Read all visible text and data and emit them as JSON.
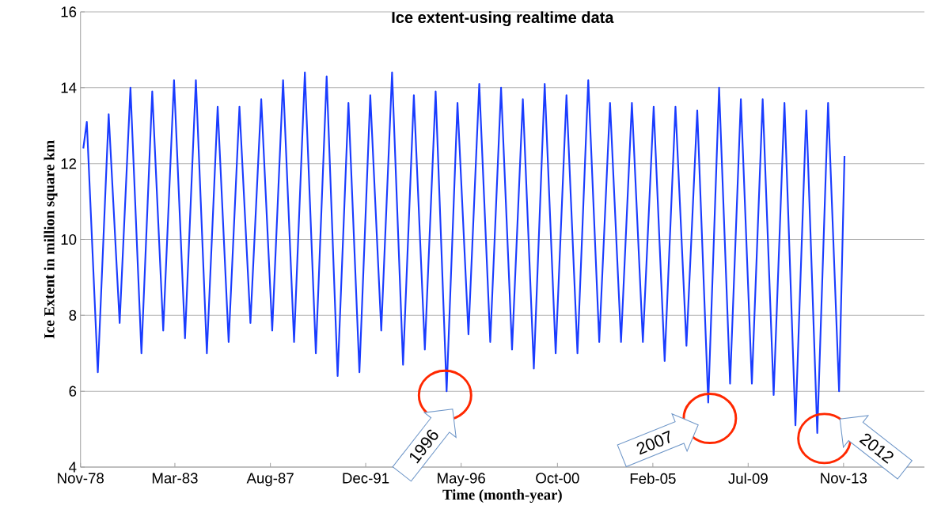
{
  "chart_data": {
    "type": "line",
    "title": "Ice extent-using realtime data",
    "xlabel": "Time (month-year)",
    "ylabel": "Ice Extent in million square km",
    "color": "#1a3cff",
    "x": [
      "1979-01",
      "1979-03",
      "1979-09",
      "1980-03",
      "1980-09",
      "1981-03",
      "1981-09",
      "1982-03",
      "1982-09",
      "1983-03",
      "1983-09",
      "1984-03",
      "1984-09",
      "1985-03",
      "1985-09",
      "1986-03",
      "1986-09",
      "1987-03",
      "1987-09",
      "1988-03",
      "1988-09",
      "1989-03",
      "1989-09",
      "1990-03",
      "1990-09",
      "1991-03",
      "1991-09",
      "1992-03",
      "1992-09",
      "1993-03",
      "1993-09",
      "1994-03",
      "1994-09",
      "1995-03",
      "1995-09",
      "1996-03",
      "1996-09",
      "1997-03",
      "1997-09",
      "1998-03",
      "1998-09",
      "1999-03",
      "1999-09",
      "2000-03",
      "2000-09",
      "2001-03",
      "2001-09",
      "2002-03",
      "2002-09",
      "2003-03",
      "2003-09",
      "2004-03",
      "2004-09",
      "2005-03",
      "2005-09",
      "2006-03",
      "2006-09",
      "2007-03",
      "2007-09",
      "2008-03",
      "2008-09",
      "2009-03",
      "2009-09",
      "2010-03",
      "2010-09",
      "2011-03",
      "2011-09",
      "2012-03",
      "2012-09",
      "2013-03",
      "2013-09",
      "2013-12"
    ],
    "values": [
      12.4,
      13.1,
      6.5,
      13.3,
      7.8,
      14.0,
      7.0,
      13.9,
      7.6,
      14.2,
      7.4,
      14.2,
      7.0,
      13.5,
      7.3,
      13.5,
      7.8,
      13.7,
      7.6,
      14.2,
      7.3,
      14.4,
      7.0,
      14.3,
      6.4,
      13.6,
      6.5,
      13.8,
      7.6,
      14.4,
      6.7,
      13.8,
      7.1,
      13.9,
      6.0,
      13.6,
      7.5,
      14.1,
      7.3,
      14.0,
      7.1,
      13.7,
      6.6,
      14.1,
      7.0,
      13.8,
      7.0,
      14.2,
      7.3,
      13.6,
      7.3,
      13.6,
      7.3,
      13.5,
      6.8,
      13.5,
      7.2,
      13.4,
      5.7,
      14.0,
      6.2,
      13.7,
      6.2,
      13.7,
      5.9,
      13.6,
      5.1,
      13.4,
      4.9,
      13.6,
      6.0,
      12.2
    ],
    "xlim": [
      "1978-11-15",
      "2017-08-01"
    ],
    "xticks": [
      {
        "value": "1978-11-15",
        "label": "Nov-78"
      },
      {
        "value": "1983-03-15",
        "label": "Mar-83"
      },
      {
        "value": "1987-08-01",
        "label": "Aug-87"
      },
      {
        "value": "1991-12-15",
        "label": "Dec-91"
      },
      {
        "value": "1996-05-01",
        "label": "May-96"
      },
      {
        "value": "2000-10-01",
        "label": "Oct-00"
      },
      {
        "value": "2005-02-15",
        "label": "Feb-05"
      },
      {
        "value": "2009-07-01",
        "label": "Jul-09"
      },
      {
        "value": "2013-11-15",
        "label": "Nov-13"
      }
    ],
    "ylim": [
      4,
      16
    ],
    "yticks": [
      4,
      6,
      8,
      10,
      12,
      14,
      16
    ],
    "grid": "y",
    "annotations": [
      {
        "text": "1996",
        "x": "1995-09",
        "y": 6.0
      },
      {
        "text": "2007",
        "x": "2007-09",
        "y": 5.7
      },
      {
        "text": "2012",
        "x": "2012-09",
        "y": 4.9
      }
    ]
  }
}
